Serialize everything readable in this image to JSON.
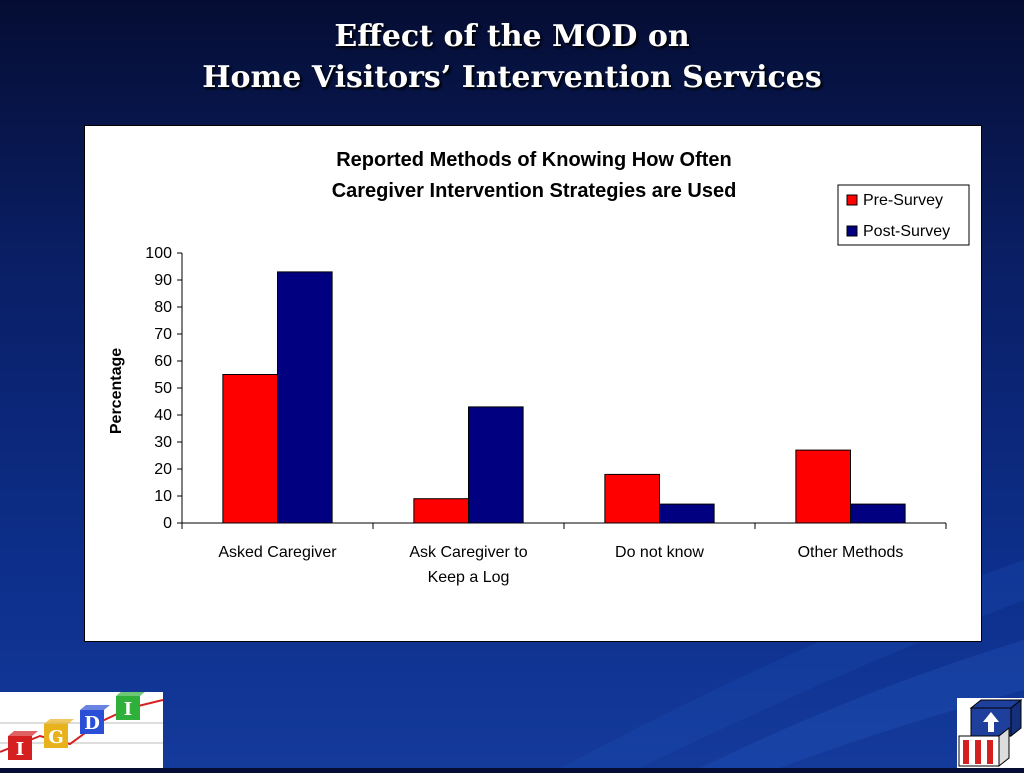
{
  "slide": {
    "title_line1": "Effect of the MOD on",
    "title_line2": "Home Visitors’ Intervention Services"
  },
  "colors": {
    "pre_survey": "#ff0000",
    "post_survey": "#000080",
    "background": "#0a1f66"
  },
  "chart_data": {
    "type": "bar",
    "title_line1": "Reported Methods of Knowing How Often",
    "title_line2": "Caregiver Intervention Strategies are Used",
    "ylabel": "Percentage",
    "xlabel": "",
    "ylim": [
      0,
      100
    ],
    "yticks": [
      0,
      10,
      20,
      30,
      40,
      50,
      60,
      70,
      80,
      90,
      100
    ],
    "categories": [
      [
        "Asked Caregiver"
      ],
      [
        "Ask Caregiver to",
        "Keep a Log"
      ],
      [
        "Do not know"
      ],
      [
        "Other Methods"
      ]
    ],
    "series": [
      {
        "name": "Pre-Survey",
        "color": "#ff0000",
        "values": [
          55,
          9,
          18,
          27
        ]
      },
      {
        "name": "Post-Survey",
        "color": "#000080",
        "values": [
          93,
          43,
          7,
          7
        ]
      }
    ],
    "legend_position": "top-right",
    "grid": false
  },
  "logos": {
    "left_letters": [
      "I",
      "G",
      "D",
      "I"
    ],
    "left_colors": [
      "#d42020",
      "#e8b21c",
      "#2a4fd6",
      "#2fb03a"
    ]
  }
}
